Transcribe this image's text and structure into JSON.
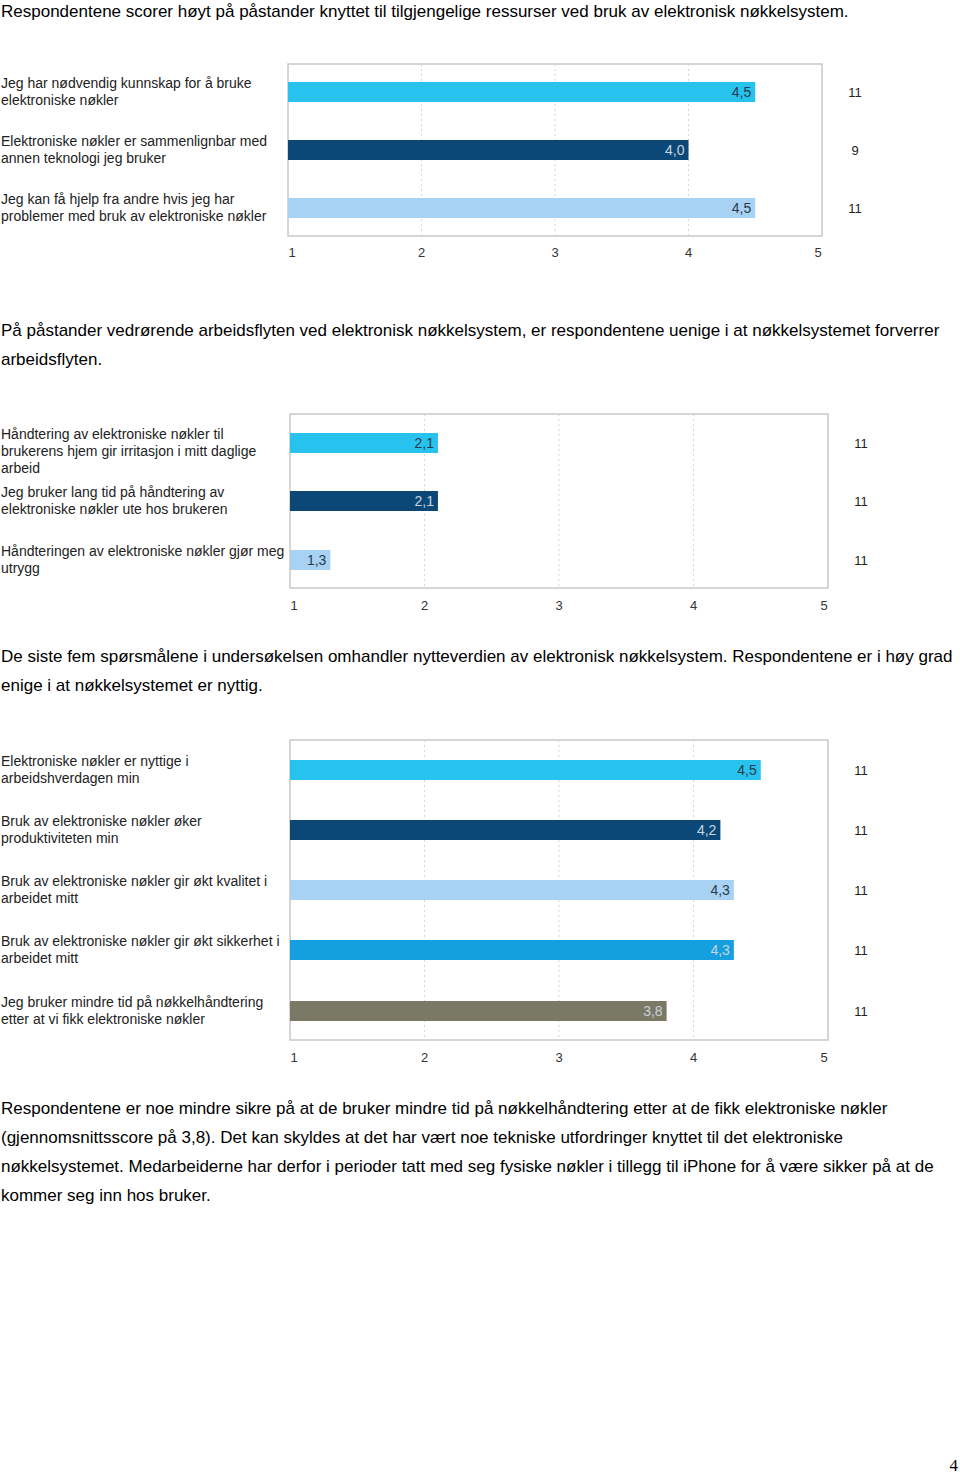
{
  "chart_data": [
    {
      "type": "bar",
      "orientation": "horizontal",
      "grid": true,
      "data_labels": true,
      "categories": [
        "Jeg har nødvendig kunnskap for å bruke elektroniske nøkler",
        "Elektroniske nøkler er sammenlignbar med annen teknologi jeg bruker",
        "Jeg kan få hjelp fra andre hvis jeg har problemer med bruk av elektroniske nøkler"
      ],
      "values": [
        4.5,
        4.0,
        4.5
      ],
      "value_labels": [
        "4,5",
        "4,0",
        "4,5"
      ],
      "n": [
        11,
        9,
        11
      ],
      "colors": [
        "#27c2ee",
        "#0b4877",
        "#a8d2f4"
      ],
      "xlim": [
        1,
        5
      ],
      "xticks": [
        1,
        2,
        3,
        4,
        5
      ]
    },
    {
      "type": "bar",
      "orientation": "horizontal",
      "grid": true,
      "data_labels": true,
      "categories": [
        "Håndtering av elektroniske nøkler til brukerens hjem gir irritasjon i mitt daglige arbeid",
        "Jeg bruker lang tid på håndtering av elektroniske nøkler ute hos brukeren",
        "Håndteringen av elektroniske nøkler gjør meg utrygg"
      ],
      "values": [
        2.1,
        2.1,
        1.3
      ],
      "value_labels": [
        "2,1",
        "2,1",
        "1,3"
      ],
      "n": [
        11,
        11,
        11
      ],
      "colors": [
        "#27c2ee",
        "#0b4877",
        "#a8d2f4"
      ],
      "xlim": [
        1,
        5
      ],
      "xticks": [
        1,
        2,
        3,
        4,
        5
      ]
    },
    {
      "type": "bar",
      "orientation": "horizontal",
      "grid": true,
      "data_labels": true,
      "categories": [
        "Elektroniske nøkler er nyttige i arbeidshverdagen min",
        "Bruk av elektroniske nøkler øker produktiviteten min",
        "Bruk av elektroniske nøkler gir økt kvalitet i arbeidet mitt",
        "Bruk av elektroniske nøkler gir økt sikkerhet i arbeidet mitt",
        "Jeg bruker mindre tid på nøkkelhåndtering etter at vi fikk elektroniske nøkler"
      ],
      "values": [
        4.5,
        4.2,
        4.3,
        4.3,
        3.8
      ],
      "value_labels": [
        "4,5",
        "4,2",
        "4,3",
        "4,3",
        "3,8"
      ],
      "n": [
        11,
        11,
        11,
        11,
        11
      ],
      "colors": [
        "#27c2ee",
        "#0b4877",
        "#a8d2f4",
        "#169fe0",
        "#7a7966"
      ],
      "xlim": [
        1,
        5
      ],
      "xticks": [
        1,
        2,
        3,
        4,
        5
      ]
    }
  ],
  "paragraphs": [
    "Respondentene scorer høyt på påstander knyttet til tilgjengelige ressurser ved bruk av elektronisk nøkkelsystem.",
    "På påstander vedrørende arbeidsflyten ved elektronisk nøkkelsystem, er respondentene uenige i at nøkkelsystemet forverrer arbeidsflyten.",
    "De siste fem spørsmålene i undersøkelsen omhandler nytteverdien av elektronisk nøkkelsystem. Respondentene er i høy grad enige i at nøkkelsystemet er nyttig.",
    "Respondentene er noe mindre sikre på at de bruker mindre tid på nøkkelhåndtering etter at de fikk elektroniske nøkler (gjennomsnittsscore på 3,8). Det kan skyldes at det har vært noe tekniske utfordringer knyttet til det elektroniske nøkkelsystemet. Medarbeiderne har derfor i perioder tatt med seg fysiske nøkler i tillegg til iPhone for å være sikker på at de kommer seg inn hos bruker."
  ],
  "page_number": "4"
}
